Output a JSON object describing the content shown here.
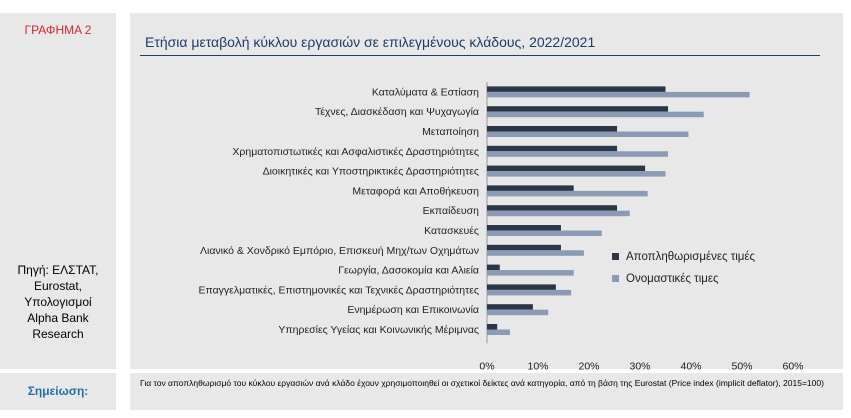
{
  "sidebar": {
    "chart_label": "ΓΡΑΦΗΜΑ 2",
    "source": "Πηγή: ΕΛΣΤΑΤ,\nEurostat,\nΥπολογισμοί\nAlpha Bank\nResearch"
  },
  "note": {
    "label": "Σημείωση:",
    "text": "Για τον αποπληθωρισμό του κύκλου εργασιών ανά κλάδο έχουν χρησιμοποιηθεί οι σχετικοί δείκτες ανά κατηγορία, από τη βάση της Eurostat (Price index (implicit deflator), 2015=100)"
  },
  "colors": {
    "real": "#2b3646",
    "nominal": "#8b9bb3",
    "title": "#1e3a6e",
    "label_red": "#d2262e",
    "note_blue": "#1f6fa8"
  },
  "chart_data": {
    "type": "bar",
    "orientation": "horizontal",
    "title": "Ετήσια μεταβολή κύκλου εργασιών σε επιλεγμένους κλάδους, 2022/2021",
    "categories": [
      "Καταλύματα & Εστίαση",
      "Τέχνες, Διασκέδαση και Ψυχαγωγία",
      "Μεταποίηση",
      "Χρηματοπιστωτικές και Ασφαλιστικές Δραστηριότητες",
      "Διοικητικές και Υποστηρικτικές Δραστηριότητες",
      "Μεταφορά και Αποθήκευση",
      "Εκπαίδευση",
      "Κατασκευές",
      "Λιανικό & Χονδρικό Εμπόριο, Επισκευή Μηχ/των Οχημάτων",
      "Γεωργία, Δασοκομία και Αλιεία",
      "Επαγγελματικές, Επιστημονικές και Τεχνικές Δραστηριότητες",
      "Ενημέρωση και Επικοινωνία",
      "Υπηρεσίες Υγείας και Κοινωνικής Μέριμνας"
    ],
    "series": [
      {
        "name": "Αποπληθωρισμένες τιμές",
        "values": [
          35.0,
          35.5,
          25.5,
          25.5,
          31.0,
          17.0,
          25.5,
          14.5,
          14.5,
          2.5,
          13.5,
          9.0,
          2.0
        ]
      },
      {
        "name": "Ονομαστικές τιμες",
        "values": [
          51.5,
          42.5,
          39.5,
          35.5,
          35.0,
          31.5,
          28.0,
          22.5,
          19.0,
          17.0,
          16.5,
          12.0,
          4.5
        ]
      }
    ],
    "xlim": [
      0,
      60
    ],
    "xticks": [
      "0%",
      "10%",
      "20%",
      "30%",
      "40%",
      "50%",
      "60%"
    ],
    "xtick_values": [
      0,
      10,
      20,
      30,
      40,
      50,
      60
    ],
    "grid": false,
    "legend_position": "right"
  }
}
